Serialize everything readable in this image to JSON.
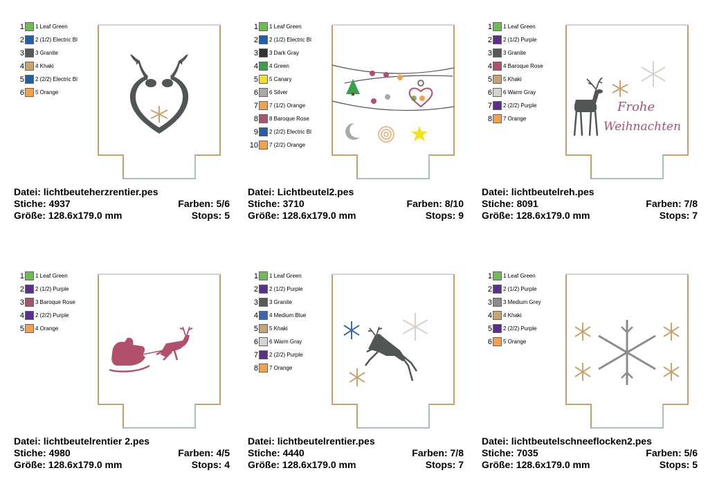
{
  "designs": [
    {
      "file": "Datei: lichtbeuteherzrentier.pes",
      "stitches": "Stiche: 4937",
      "colors_count": "Farben: 5/6",
      "size": "Größe: 128.6x179.0 mm",
      "stops": "Stops: 5",
      "colors": [
        {
          "n": "1",
          "label": "1 Leaf Green",
          "hex": "#6cc04a"
        },
        {
          "n": "2",
          "label": "2 (1/2) Electric Bl",
          "hex": "#1f5fae"
        },
        {
          "n": "3",
          "label": "3 Granite",
          "hex": "#565a5c"
        },
        {
          "n": "4",
          "label": "4 Khaki",
          "hex": "#c9a46c"
        },
        {
          "n": "5",
          "label": "2 (2/2) Electric Bl",
          "hex": "#1f5fae"
        },
        {
          "n": "6",
          "label": "5 Orange",
          "hex": "#f6a14a"
        }
      ]
    },
    {
      "file": "Datei: Lichtbeutel2.pes",
      "stitches": "Stiche: 3710",
      "colors_count": "Farben: 8/10",
      "size": "Größe: 128.6x179.0 mm",
      "stops": "Stops: 9",
      "colors": [
        {
          "n": "1",
          "label": "1 Leaf Green",
          "hex": "#6cc04a"
        },
        {
          "n": "2",
          "label": "2 (1/2) Electric Bl",
          "hex": "#1f5fae"
        },
        {
          "n": "3",
          "label": "3 Dark Gray",
          "hex": "#2e3532"
        },
        {
          "n": "4",
          "label": "4 Green",
          "hex": "#3aa14a"
        },
        {
          "n": "5",
          "label": "5 Canary",
          "hex": "#f3e21b"
        },
        {
          "n": "6",
          "label": "6 Silver",
          "hex": "#a7a9ac"
        },
        {
          "n": "7",
          "label": "7 (1/2) Orange",
          "hex": "#f6a14a"
        },
        {
          "n": "8",
          "label": "8 Baroque Rose",
          "hex": "#b0506a"
        },
        {
          "n": "9",
          "label": "2 (2/2) Electric Bl",
          "hex": "#1f5fae"
        },
        {
          "n": "10",
          "label": "7 (2/2) Orange",
          "hex": "#f6a14a"
        }
      ]
    },
    {
      "file": "Datei: lichtbeutelreh.pes",
      "stitches": "Stiche: 8091",
      "colors_count": "Farben: 7/8",
      "size": "Größe: 128.6x179.0 mm",
      "stops": "Stops: 7",
      "colors": [
        {
          "n": "1",
          "label": "1 Leaf Green",
          "hex": "#6cc04a"
        },
        {
          "n": "2",
          "label": "2 (1/2) Purple",
          "hex": "#5b2f8f"
        },
        {
          "n": "3",
          "label": "3 Granite",
          "hex": "#565a5c"
        },
        {
          "n": "4",
          "label": "4 Baroque Rose",
          "hex": "#b0506a"
        },
        {
          "n": "5",
          "label": "5 Khaki",
          "hex": "#c9a46c"
        },
        {
          "n": "6",
          "label": "6 Warm Gray",
          "hex": "#d8d2cc"
        },
        {
          "n": "7",
          "label": "2 (2/2) Purple",
          "hex": "#5b2f8f"
        },
        {
          "n": "8",
          "label": "7 Orange",
          "hex": "#f6a14a"
        }
      ],
      "artwork_text": [
        "Frohe",
        "Weihnachten"
      ]
    },
    {
      "file": "Datei: lichtbeutelrentier 2.pes",
      "stitches": "Stiche: 4980",
      "colors_count": "Farben: 4/5",
      "size": "Größe: 128.6x179.0 mm",
      "stops": "Stops: 4",
      "colors": [
        {
          "n": "1",
          "label": "1 Leaf Green",
          "hex": "#6cc04a"
        },
        {
          "n": "2",
          "label": "2 (1/2) Purple",
          "hex": "#5b2f8f"
        },
        {
          "n": "3",
          "label": "3 Baroque Rose",
          "hex": "#b0506a"
        },
        {
          "n": "4",
          "label": "2 (2/2) Purple",
          "hex": "#5b2f8f"
        },
        {
          "n": "5",
          "label": "4 Orange",
          "hex": "#f6a14a"
        }
      ]
    },
    {
      "file": "Datei: lichtbeutelrentier.pes",
      "stitches": "Stiche: 4440",
      "colors_count": "Farben: 7/8",
      "size": "Größe: 128.6x179.0 mm",
      "stops": "Stops: 7",
      "colors": [
        {
          "n": "1",
          "label": "1 Leaf Green",
          "hex": "#6cc04a"
        },
        {
          "n": "2",
          "label": "2 (1/2) Purple",
          "hex": "#5b2f8f"
        },
        {
          "n": "3",
          "label": "3 Granite",
          "hex": "#565a5c"
        },
        {
          "n": "4",
          "label": "4 Medium Blue",
          "hex": "#3a64b4"
        },
        {
          "n": "5",
          "label": "5 Khaki",
          "hex": "#c9a46c"
        },
        {
          "n": "6",
          "label": "6 Warm Gray",
          "hex": "#d8d2cc"
        },
        {
          "n": "7",
          "label": "2 (2/2) Purple",
          "hex": "#5b2f8f"
        },
        {
          "n": "8",
          "label": "7 Orange",
          "hex": "#f6a14a"
        }
      ]
    },
    {
      "file": "Datei: lichtbeutelschneeflocken2.pes",
      "stitches": "Stiche: 7035",
      "colors_count": "Farben: 5/6",
      "size": "Größe: 128.6x179.0 mm",
      "stops": "Stops: 5",
      "colors": [
        {
          "n": "1",
          "label": "1 Leaf Green",
          "hex": "#6cc04a"
        },
        {
          "n": "2",
          "label": "2 (1/2) Purple",
          "hex": "#5b2f8f"
        },
        {
          "n": "3",
          "label": "3 Medium Grey",
          "hex": "#8a8c8e"
        },
        {
          "n": "4",
          "label": "4 Khaki",
          "hex": "#c9a46c"
        },
        {
          "n": "5",
          "label": "2 (2/2) Purple",
          "hex": "#5b2f8f"
        },
        {
          "n": "6",
          "label": "5 Orange",
          "hex": "#f6a14a"
        }
      ]
    }
  ]
}
